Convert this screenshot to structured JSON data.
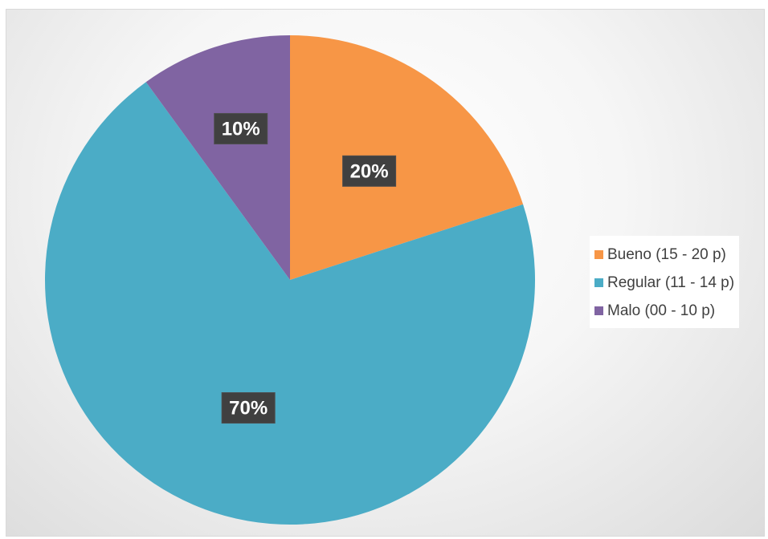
{
  "chart_data": {
    "type": "pie",
    "title": "",
    "categories": [
      "Bueno (15 - 20 p)",
      "Regular (11 - 14 p)",
      "Malo (00 - 10 p)"
    ],
    "values": [
      20,
      70,
      10
    ],
    "data_labels": [
      "20%",
      "70%",
      "10%"
    ],
    "colors": [
      "#f79646",
      "#4bacc6",
      "#8064a2"
    ],
    "start_angle_deg": 0,
    "direction": "clockwise",
    "legend_position": "right",
    "label_box_color": "#404040"
  },
  "legend": {
    "items": [
      {
        "label": "Bueno (15 - 20 p)",
        "color": "#f79646"
      },
      {
        "label": "Regular (11 - 14 p)",
        "color": "#4bacc6"
      },
      {
        "label": "Malo (00 - 10 p)",
        "color": "#8064a2"
      }
    ]
  }
}
